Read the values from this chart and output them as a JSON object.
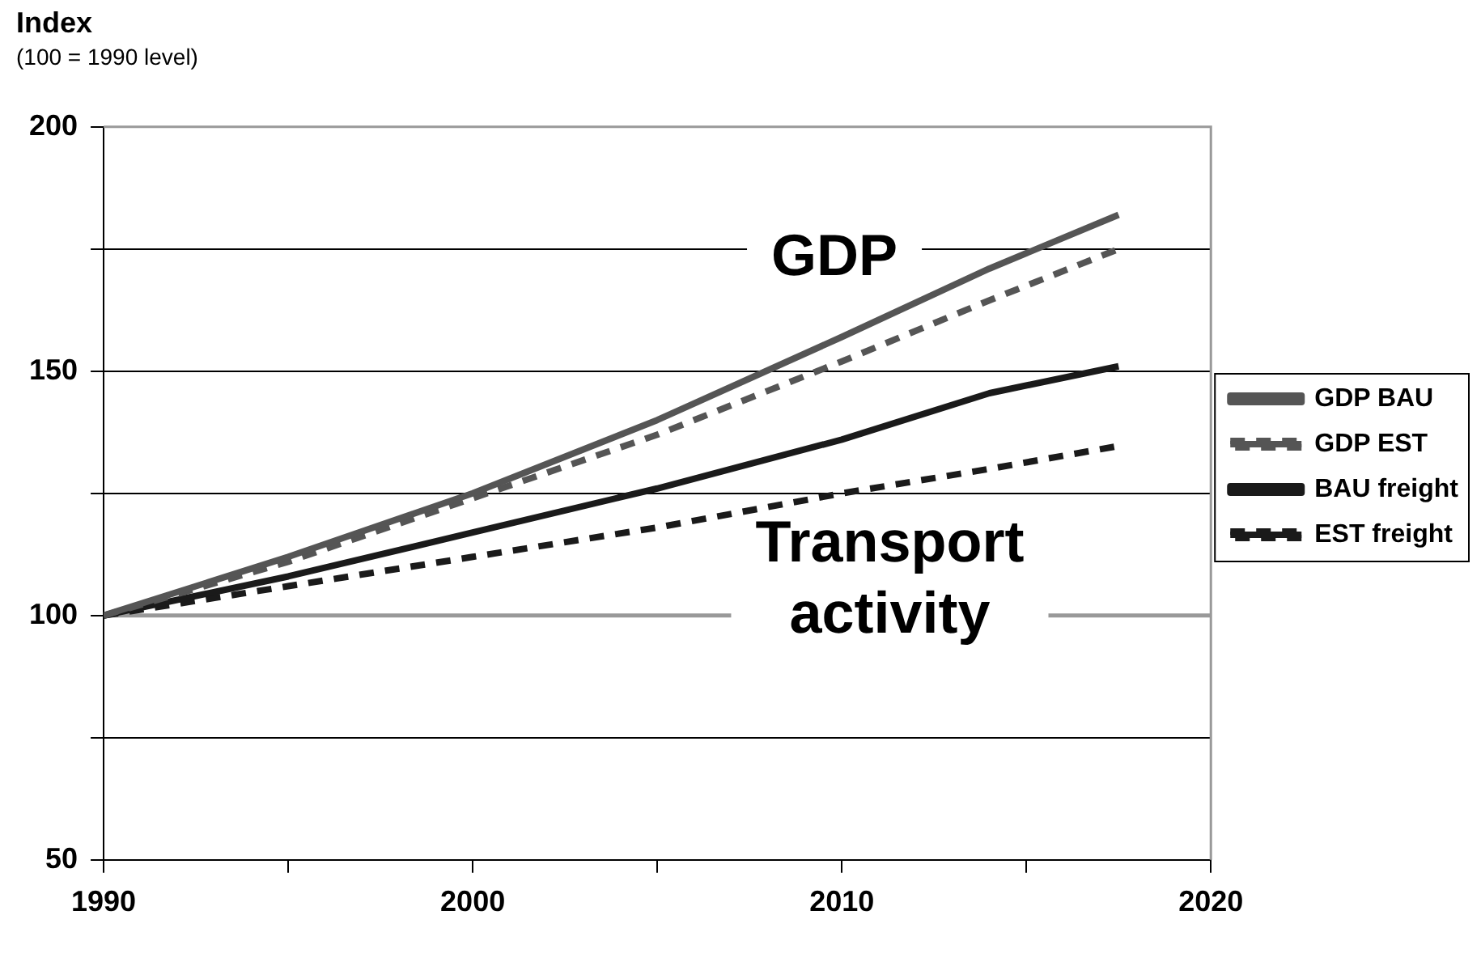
{
  "chart_data": {
    "type": "line",
    "title": "Index",
    "subtitle": "(100 = 1990 level)",
    "x": [
      1990,
      1995,
      2000,
      2005,
      2010,
      2014,
      2017.5
    ],
    "series": [
      {
        "name": "GDP BAU",
        "color": "#555555",
        "line_style": "solid",
        "values": [
          100,
          112,
          125,
          140,
          157,
          171,
          182
        ]
      },
      {
        "name": "GDP EST",
        "color": "#555555",
        "line_style": "dashed",
        "values": [
          100,
          111,
          124,
          137,
          152,
          164.5,
          175
        ]
      },
      {
        "name": "BAU freight",
        "color": "#1a1a1a",
        "line_style": "solid",
        "values": [
          100,
          108,
          117,
          126,
          136,
          145.5,
          151
        ]
      },
      {
        "name": "EST freight",
        "color": "#1a1a1a",
        "line_style": "dashed",
        "values": [
          100,
          106,
          112,
          118,
          125,
          130,
          134.7
        ]
      }
    ],
    "xlim": [
      1990,
      2020
    ],
    "xticks": [
      1990,
      {
        "value": 1995,
        "label": null
      },
      2000,
      {
        "value": 2005,
        "label": null
      },
      2010,
      {
        "value": 2015,
        "label": null
      },
      2020
    ],
    "ylim": [
      50,
      200
    ],
    "yticks": [
      50,
      {
        "value": 75,
        "label": null
      },
      100,
      {
        "value": 125,
        "label": null
      },
      150,
      {
        "value": 175,
        "label": null
      },
      200
    ],
    "grid": "y",
    "legend": "right",
    "marker": "none",
    "ref_lines": [
      {
        "axis": "y",
        "value": 100,
        "color": "#999999"
      }
    ],
    "annotations": [
      "GDP",
      "Transport activity"
    ]
  }
}
